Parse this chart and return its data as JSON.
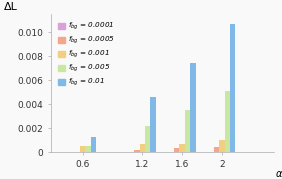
{
  "title_y": "ΔL",
  "xlabel": "α_p",
  "x_positions": [
    0.6,
    1.2,
    1.6,
    2.0
  ],
  "x_labels": [
    "0.6",
    "1.2",
    "1.6",
    "2"
  ],
  "series": [
    {
      "label": "f_{bg} = 0.0001",
      "color": "#d9a0d9",
      "values": [
        5e-06,
        5e-06,
        2e-05,
        5e-05
      ]
    },
    {
      "label": "f_{bg} = 0.0005",
      "color": "#f4a58a",
      "values": [
        3e-05,
        0.00015,
        0.00035,
        0.00045
      ]
    },
    {
      "label": "f_{bg} = 0.001",
      "color": "#f0d080",
      "values": [
        0.00055,
        0.00065,
        0.00065,
        0.001
      ]
    },
    {
      "label": "f_{bg} = 0.005",
      "color": "#c8e8a0",
      "values": [
        0.00055,
        0.00215,
        0.00355,
        0.0051
      ]
    },
    {
      "label": "f_{bg} = 0.01",
      "color": "#80b8e8",
      "values": [
        0.0013,
        0.0046,
        0.00745,
        0.0107
      ]
    }
  ],
  "ylim": [
    0,
    0.0115
  ],
  "yticks": [
    0.0,
    0.002,
    0.004,
    0.006,
    0.008,
    0.01
  ],
  "bar_width": 0.055,
  "background_color": "#f9f9f9"
}
